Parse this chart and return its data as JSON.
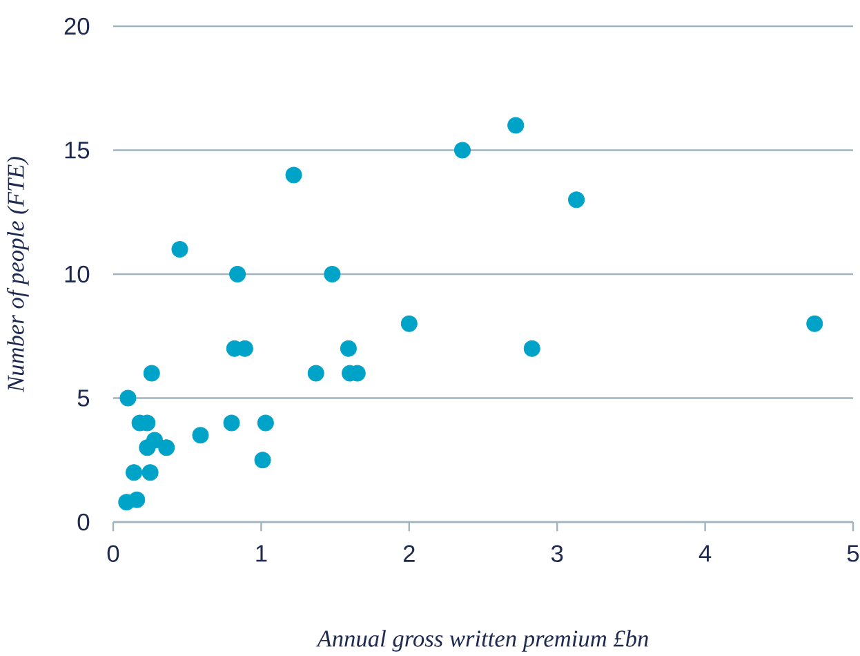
{
  "chart_data": {
    "type": "scatter",
    "xlabel": "Annual gross written premium £bn",
    "ylabel": "Number of people (FTE)",
    "x": [
      2.72,
      2.36,
      1.22,
      3.13,
      0.45,
      0.84,
      1.48,
      2.0,
      4.74,
      0.82,
      0.89,
      1.59,
      2.83,
      1.37,
      1.6,
      1.65,
      0.26,
      0.1,
      0.18,
      0.23,
      0.8,
      1.03,
      0.59,
      0.23,
      0.28,
      0.36,
      1.01,
      0.14,
      0.25,
      0.09,
      0.16
    ],
    "values": [
      16,
      15,
      14,
      13,
      11,
      10,
      10,
      8,
      8,
      7,
      7,
      7,
      7,
      6,
      6,
      6,
      6,
      5,
      4,
      4,
      4,
      4,
      3.5,
      3,
      3.3,
      3,
      2.5,
      2,
      2,
      0.8,
      0.9
    ],
    "color": "#00a3c8",
    "marker": "circle",
    "grid": "y",
    "xlim": [
      0,
      5
    ],
    "ylim": [
      0,
      20
    ],
    "xticks": [
      0,
      1,
      2,
      3,
      4,
      5
    ],
    "yticks": [
      0,
      5,
      10,
      15,
      20
    ]
  }
}
